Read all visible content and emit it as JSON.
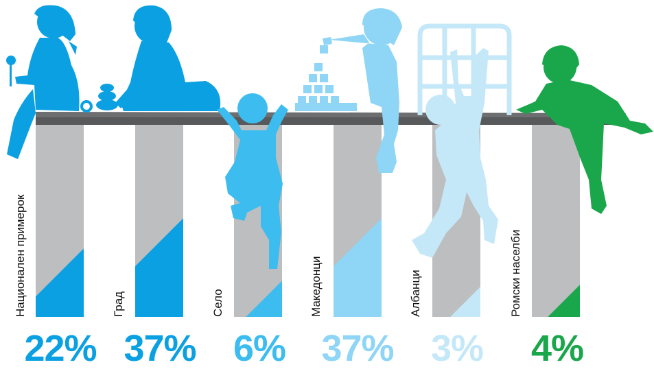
{
  "chart_data": {
    "type": "bar",
    "categories": [
      "Национален примерок",
      "Град",
      "Село",
      "Македонци",
      "Албанци",
      "Ромски населби"
    ],
    "values": [
      22,
      37,
      6,
      37,
      3,
      4
    ],
    "value_labels": [
      "22%",
      "37%",
      "6%",
      "37%",
      "3%",
      "4%"
    ],
    "ylim": [
      0,
      100
    ],
    "title": "",
    "xlabel": "",
    "ylabel": "",
    "grid": false,
    "colors": [
      "#0aa0e2",
      "#0aa0e2",
      "#3cbcef",
      "#8fd5f5",
      "#c5e8f8",
      "#1aa64a"
    ],
    "bar_background": "#bcbec0",
    "shelf_color": "#58595b",
    "decorations": [
      "child-with-lollipop",
      "child-with-rings",
      "climbing-child",
      "child-with-blocks",
      "child-on-chair",
      "child-climbing-over"
    ]
  }
}
